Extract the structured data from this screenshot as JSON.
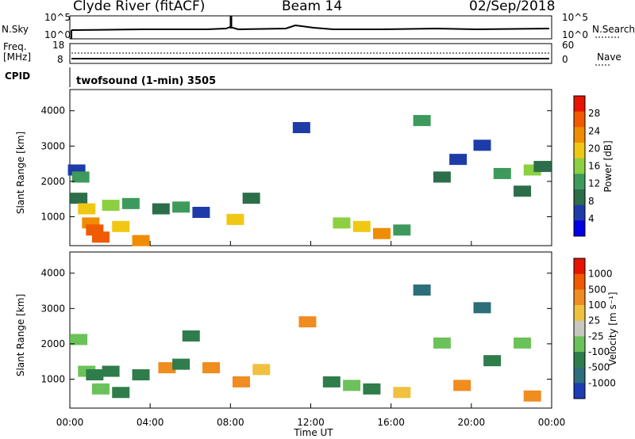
{
  "header": {
    "station": "Clyde River (fitACF)",
    "beam": "Beam 14",
    "date": "02/Sep/2018"
  },
  "noise_panel": {
    "left_label": "N.Sky",
    "right_label": "N.Search",
    "left_ticks": [
      "10^5",
      "10^0"
    ],
    "right_ticks": [
      "10^5",
      "10^0"
    ]
  },
  "freq_panel": {
    "left_label_1": "Freq.",
    "left_label_2": "[MHz]",
    "right_label": "Nave",
    "left_ticks": [
      "18",
      "8"
    ],
    "right_ticks": [
      "60",
      "0"
    ]
  },
  "cpid": {
    "label": "CPID",
    "value": "twofsound (1-min) 3505"
  },
  "chart_data": [
    {
      "type": "heatmap",
      "name": "power",
      "ylabel": "Slant Range [km]",
      "yticks": [
        1000,
        2000,
        3000,
        4000
      ],
      "ylim": [
        180,
        4600
      ],
      "xlim_hours": [
        0,
        24
      ],
      "colorbar_label": "Power [dB]",
      "colorbar_ticks": [
        "28",
        "24",
        "20",
        "16",
        "12",
        "8",
        "4"
      ],
      "colors": [
        "#0000e6",
        "#1e3ca8",
        "#2c6e4a",
        "#3d9a5c",
        "#8cd042",
        "#f0c814",
        "#f08c00",
        "#f05a00",
        "#e61400"
      ],
      "cells": [
        [
          0.3,
          2300,
          4
        ],
        [
          0.5,
          2100,
          12
        ],
        [
          0.4,
          1500,
          8
        ],
        [
          0.8,
          1200,
          20
        ],
        [
          1.0,
          800,
          24
        ],
        [
          1.2,
          600,
          28
        ],
        [
          1.5,
          400,
          28
        ],
        [
          2.0,
          1300,
          16
        ],
        [
          2.5,
          700,
          20
        ],
        [
          3.0,
          1350,
          12
        ],
        [
          3.5,
          300,
          24
        ],
        [
          4.5,
          1200,
          8
        ],
        [
          5.5,
          1250,
          12
        ],
        [
          6.5,
          1100,
          4
        ],
        [
          8.2,
          900,
          20
        ],
        [
          9.0,
          1500,
          8
        ],
        [
          11.5,
          3500,
          4
        ],
        [
          13.5,
          800,
          16
        ],
        [
          14.5,
          700,
          20
        ],
        [
          15.5,
          500,
          24
        ],
        [
          16.5,
          600,
          12
        ],
        [
          17.5,
          3700,
          12
        ],
        [
          18.5,
          2100,
          8
        ],
        [
          19.3,
          2600,
          4
        ],
        [
          20.5,
          3000,
          4
        ],
        [
          21.5,
          2200,
          12
        ],
        [
          22.5,
          1700,
          8
        ],
        [
          23.0,
          2300,
          16
        ],
        [
          23.5,
          2400,
          8
        ]
      ]
    },
    {
      "type": "heatmap",
      "name": "velocity",
      "ylabel": "Slant Range [km]",
      "yticks": [
        1000,
        2000,
        3000,
        4000
      ],
      "ylim": [
        180,
        4600
      ],
      "xlim_hours": [
        0,
        24
      ],
      "colorbar_label": "Velocity [m s⁻¹]",
      "colorbar_ticks": [
        "1000",
        "500",
        "100",
        "25",
        "-25",
        "-100",
        "-500",
        "-1000"
      ],
      "colors": [
        "#1e3cb4",
        "#2c6e7a",
        "#2e7d4a",
        "#6cc25a",
        "#c8c8c0",
        "#f0c040",
        "#f08c20",
        "#f05a00",
        "#e61400"
      ],
      "cells": [
        [
          0.4,
          2100,
          25
        ],
        [
          0.8,
          1200,
          25
        ],
        [
          1.2,
          1100,
          100
        ],
        [
          1.5,
          700,
          25
        ],
        [
          2.0,
          1200,
          100
        ],
        [
          2.5,
          600,
          100
        ],
        [
          3.5,
          1100,
          100
        ],
        [
          4.8,
          1300,
          -500
        ],
        [
          5.5,
          1400,
          100
        ],
        [
          6.0,
          2200,
          100
        ],
        [
          7.0,
          1300,
          -500
        ],
        [
          8.5,
          900,
          -500
        ],
        [
          9.5,
          1250,
          -100
        ],
        [
          11.8,
          2600,
          -500
        ],
        [
          13.0,
          900,
          100
        ],
        [
          14.0,
          800,
          25
        ],
        [
          15.0,
          700,
          100
        ],
        [
          16.5,
          600,
          -100
        ],
        [
          17.5,
          3500,
          500
        ],
        [
          18.5,
          2000,
          25
        ],
        [
          19.5,
          800,
          -500
        ],
        [
          20.5,
          3000,
          500
        ],
        [
          21.0,
          1500,
          100
        ],
        [
          22.5,
          2000,
          25
        ],
        [
          23.0,
          500,
          -500
        ]
      ]
    }
  ],
  "x_axis": {
    "label": "Time UT",
    "ticks": [
      "00:00",
      "04:00",
      "08:00",
      "12:00",
      "16:00",
      "20:00",
      "00:00"
    ]
  }
}
